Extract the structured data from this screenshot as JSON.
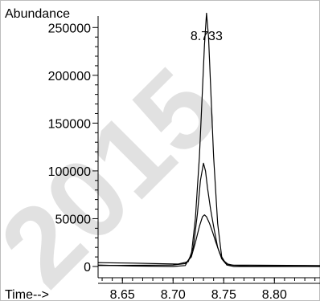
{
  "chart_data": {
    "type": "line",
    "ylabel": "Abundance",
    "xlabel": "Time-->",
    "xlim": [
      8.626,
      8.845
    ],
    "ylim": [
      0,
      262000
    ],
    "x_ticks": [
      8.65,
      8.7,
      8.75,
      8.8
    ],
    "x_tick_labels": [
      "8.65",
      "8.70",
      "8.75",
      "8.80"
    ],
    "y_ticks": [
      0,
      50000,
      100000,
      150000,
      200000,
      250000
    ],
    "y_tick_labels": [
      "0",
      "50000",
      "100000",
      "150000",
      "200000",
      "250000"
    ],
    "peak_label": "8.733",
    "peak_x": 8.733,
    "grid": false,
    "series": [
      {
        "color": "#000000",
        "x": [
          8.626,
          8.66,
          8.7,
          8.712,
          8.718,
          8.722,
          8.726,
          8.729,
          8.731,
          8.733,
          8.735,
          8.737,
          8.74,
          8.744,
          8.748,
          8.753,
          8.76,
          8.845
        ],
        "y": [
          1500,
          500,
          0,
          1000,
          12000,
          50000,
          115000,
          185000,
          232000,
          265000,
          240000,
          190000,
          115000,
          45000,
          10000,
          1500,
          0,
          0
        ]
      },
      {
        "color": "#000000",
        "x": [
          8.626,
          8.66,
          8.705,
          8.715,
          8.72,
          8.724,
          8.727,
          8.73,
          8.732,
          8.734,
          8.737,
          8.74,
          8.744,
          8.748,
          8.752,
          8.756,
          8.845
        ],
        "y": [
          4000,
          3500,
          2500,
          5000,
          20000,
          55000,
          90000,
          108000,
          100000,
          82000,
          60000,
          42000,
          20000,
          8000,
          3000,
          1500,
          1000
        ]
      },
      {
        "color": "#000000",
        "x": [
          8.626,
          8.7,
          8.712,
          8.718,
          8.722,
          8.726,
          8.729,
          8.731,
          8.733,
          8.736,
          8.739,
          8.742,
          8.746,
          8.75,
          8.754,
          8.76,
          8.775,
          8.845
        ],
        "y": [
          1000,
          1500,
          3000,
          10000,
          25000,
          42000,
          52000,
          54000,
          52000,
          45000,
          36000,
          26000,
          14000,
          6000,
          2500,
          1200,
          500,
          0
        ]
      }
    ]
  },
  "watermark": "2015"
}
